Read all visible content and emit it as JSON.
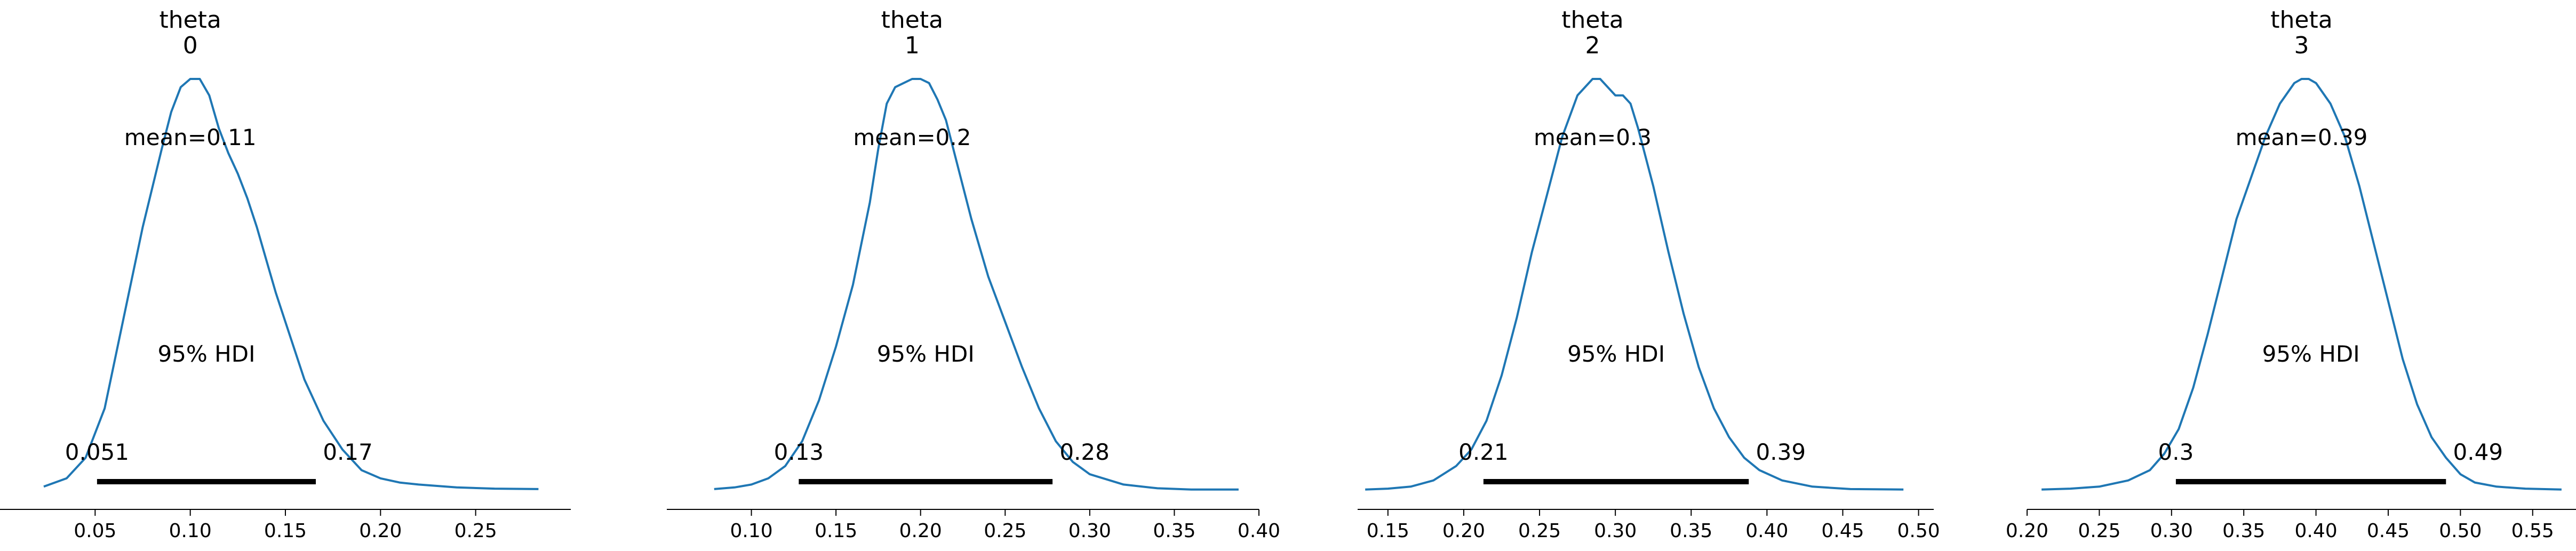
{
  "figure_title": "",
  "chart_data": [
    {
      "type": "line",
      "title_var": "theta",
      "title_index": "0",
      "mean_label": "mean=0.11",
      "hdi_label": "95% HDI",
      "hdi_low_label": "0.051",
      "hdi_high_label": "0.17",
      "hdi": [
        0.051,
        0.166
      ],
      "xlim": [
        0.0,
        0.3
      ],
      "x_ticks": [
        0.05,
        0.1,
        0.15,
        0.2,
        0.25
      ],
      "x_tick_labels": [
        "0.05",
        "0.10",
        "0.15",
        "0.20",
        "0.25"
      ],
      "series": [
        {
          "x": [
            0.023,
            0.035,
            0.045,
            0.055,
            0.065,
            0.075,
            0.085,
            0.09,
            0.095,
            0.1,
            0.105,
            0.11,
            0.115,
            0.12,
            0.125,
            0.13,
            0.135,
            0.14,
            0.145,
            0.15,
            0.155,
            0.16,
            0.165,
            0.17,
            0.18,
            0.19,
            0.2,
            0.21,
            0.22,
            0.24,
            0.26,
            0.283
          ],
          "y": [
            0.01,
            0.03,
            0.08,
            0.2,
            0.42,
            0.64,
            0.83,
            0.92,
            0.98,
            1.0,
            1.0,
            0.96,
            0.88,
            0.82,
            0.77,
            0.71,
            0.64,
            0.56,
            0.48,
            0.41,
            0.34,
            0.27,
            0.22,
            0.17,
            0.1,
            0.05,
            0.03,
            0.02,
            0.015,
            0.008,
            0.005,
            0.004
          ]
        }
      ]
    },
    {
      "type": "line",
      "title_var": "theta",
      "title_index": "1",
      "mean_label": "mean=0.2",
      "hdi_label": "95% HDI",
      "hdi_low_label": "0.13",
      "hdi_high_label": "0.28",
      "hdi": [
        0.128,
        0.278
      ],
      "xlim": [
        0.05,
        0.4
      ],
      "x_ticks": [
        0.1,
        0.15,
        0.2,
        0.25,
        0.3,
        0.35,
        0.4
      ],
      "x_tick_labels": [
        "0.10",
        "0.15",
        "0.20",
        "0.25",
        "0.30",
        "0.35",
        "0.40"
      ],
      "series": [
        {
          "x": [
            0.078,
            0.09,
            0.1,
            0.11,
            0.12,
            0.13,
            0.14,
            0.15,
            0.16,
            0.17,
            0.175,
            0.18,
            0.185,
            0.19,
            0.195,
            0.2,
            0.205,
            0.21,
            0.215,
            0.22,
            0.23,
            0.24,
            0.25,
            0.26,
            0.27,
            0.28,
            0.29,
            0.3,
            0.32,
            0.34,
            0.36,
            0.388
          ],
          "y": [
            0.004,
            0.008,
            0.015,
            0.03,
            0.06,
            0.12,
            0.22,
            0.35,
            0.5,
            0.7,
            0.83,
            0.94,
            0.98,
            0.99,
            1.0,
            1.0,
            0.99,
            0.95,
            0.9,
            0.82,
            0.66,
            0.52,
            0.41,
            0.3,
            0.2,
            0.12,
            0.07,
            0.04,
            0.015,
            0.006,
            0.003,
            0.003
          ]
        }
      ]
    },
    {
      "type": "line",
      "title_var": "theta",
      "title_index": "2",
      "mean_label": "mean=0.3",
      "hdi_label": "95% HDI",
      "hdi_low_label": "0.21",
      "hdi_high_label": "0.39",
      "hdi": [
        0.213,
        0.388
      ],
      "xlim": [
        0.13,
        0.51
      ],
      "x_ticks": [
        0.15,
        0.2,
        0.25,
        0.3,
        0.35,
        0.4,
        0.45,
        0.5
      ],
      "x_tick_labels": [
        "0.15",
        "0.20",
        "0.25",
        "0.30",
        "0.35",
        "0.40",
        "0.45",
        "0.50"
      ],
      "series": [
        {
          "x": [
            0.135,
            0.15,
            0.165,
            0.18,
            0.195,
            0.205,
            0.215,
            0.225,
            0.235,
            0.245,
            0.255,
            0.265,
            0.275,
            0.285,
            0.29,
            0.295,
            0.3,
            0.305,
            0.31,
            0.315,
            0.325,
            0.335,
            0.345,
            0.355,
            0.365,
            0.375,
            0.385,
            0.395,
            0.41,
            0.43,
            0.455,
            0.49
          ],
          "y": [
            0.003,
            0.005,
            0.01,
            0.025,
            0.06,
            0.1,
            0.17,
            0.28,
            0.42,
            0.58,
            0.72,
            0.86,
            0.96,
            1.0,
            1.0,
            0.98,
            0.96,
            0.96,
            0.94,
            0.88,
            0.74,
            0.58,
            0.43,
            0.3,
            0.2,
            0.13,
            0.08,
            0.05,
            0.025,
            0.01,
            0.004,
            0.003
          ]
        }
      ]
    },
    {
      "type": "line",
      "title_var": "theta",
      "title_index": "3",
      "mean_label": "mean=0.39",
      "hdi_label": "95% HDI",
      "hdi_low_label": "0.3",
      "hdi_high_label": "0.49",
      "hdi": [
        0.303,
        0.49
      ],
      "xlim": [
        0.2,
        0.58
      ],
      "x_ticks": [
        0.2,
        0.25,
        0.3,
        0.35,
        0.4,
        0.45,
        0.5,
        0.55
      ],
      "x_tick_labels": [
        "0.20",
        "0.25",
        "0.30",
        "0.35",
        "0.40",
        "0.45",
        "0.50",
        "0.55"
      ],
      "series": [
        {
          "x": [
            0.21,
            0.23,
            0.25,
            0.27,
            0.285,
            0.295,
            0.305,
            0.315,
            0.325,
            0.335,
            0.345,
            0.355,
            0.365,
            0.375,
            0.385,
            0.39,
            0.395,
            0.4,
            0.41,
            0.42,
            0.43,
            0.44,
            0.45,
            0.46,
            0.47,
            0.48,
            0.49,
            0.5,
            0.51,
            0.525,
            0.545,
            0.57
          ],
          "y": [
            0.003,
            0.005,
            0.01,
            0.025,
            0.05,
            0.09,
            0.15,
            0.25,
            0.38,
            0.52,
            0.66,
            0.76,
            0.86,
            0.94,
            0.99,
            1.0,
            1.0,
            0.99,
            0.94,
            0.86,
            0.74,
            0.6,
            0.46,
            0.32,
            0.21,
            0.13,
            0.08,
            0.04,
            0.02,
            0.01,
            0.005,
            0.003
          ]
        }
      ]
    }
  ]
}
